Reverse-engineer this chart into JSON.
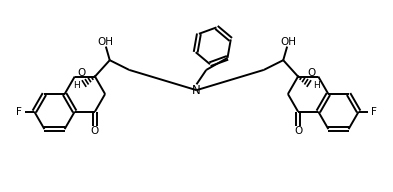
{
  "bg_color": "#ffffff",
  "line_color": "#000000",
  "line_width": 1.4,
  "figsize": [
    3.93,
    1.92
  ],
  "dpi": 100,
  "xlim": [
    0,
    10
  ],
  "ylim": [
    0,
    4.9
  ]
}
